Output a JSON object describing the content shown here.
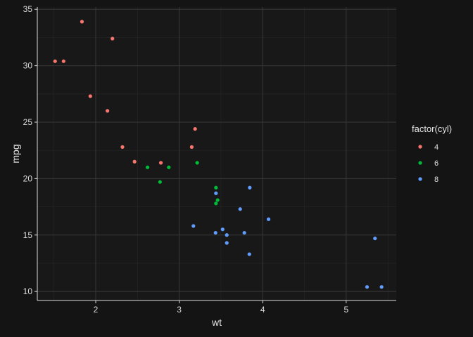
{
  "chart_data": {
    "type": "scatter",
    "title": "",
    "xlabel": "wt",
    "ylabel": "mpg",
    "xlim": [
      1.3,
      5.6
    ],
    "ylim": [
      9.2,
      35.2
    ],
    "xticks": [
      2,
      3,
      4,
      5
    ],
    "yticks": [
      10,
      15,
      20,
      25,
      30,
      35
    ],
    "grid": true,
    "legend": {
      "title": "factor(cyl)",
      "position": "right",
      "entries": [
        "4",
        "6",
        "8"
      ]
    },
    "series": [
      {
        "name": "4",
        "color": "#F8766D",
        "points": [
          {
            "x": 1.835,
            "y": 33.9
          },
          {
            "x": 2.2,
            "y": 32.4
          },
          {
            "x": 1.513,
            "y": 30.4
          },
          {
            "x": 1.615,
            "y": 30.4
          },
          {
            "x": 1.935,
            "y": 27.3
          },
          {
            "x": 2.14,
            "y": 26.0
          },
          {
            "x": 3.19,
            "y": 24.4
          },
          {
            "x": 3.15,
            "y": 22.8
          },
          {
            "x": 2.32,
            "y": 22.8
          },
          {
            "x": 2.465,
            "y": 21.5
          },
          {
            "x": 2.78,
            "y": 21.4
          }
        ]
      },
      {
        "name": "6",
        "color": "#00BA38",
        "points": [
          {
            "x": 2.62,
            "y": 21.0
          },
          {
            "x": 2.875,
            "y": 21.0
          },
          {
            "x": 3.215,
            "y": 21.4
          },
          {
            "x": 3.44,
            "y": 19.2
          },
          {
            "x": 3.46,
            "y": 18.1
          },
          {
            "x": 3.44,
            "y": 17.8
          },
          {
            "x": 2.77,
            "y": 19.7
          }
        ]
      },
      {
        "name": "8",
        "color": "#619CFF",
        "points": [
          {
            "x": 3.845,
            "y": 19.2
          },
          {
            "x": 3.44,
            "y": 18.7
          },
          {
            "x": 3.73,
            "y": 17.3
          },
          {
            "x": 4.07,
            "y": 16.4
          },
          {
            "x": 3.17,
            "y": 15.8
          },
          {
            "x": 3.52,
            "y": 15.5
          },
          {
            "x": 3.435,
            "y": 15.2
          },
          {
            "x": 3.78,
            "y": 15.2
          },
          {
            "x": 3.57,
            "y": 15.0
          },
          {
            "x": 3.57,
            "y": 14.3
          },
          {
            "x": 5.345,
            "y": 14.7
          },
          {
            "x": 3.84,
            "y": 13.3
          },
          {
            "x": 5.25,
            "y": 10.4
          },
          {
            "x": 5.424,
            "y": 10.4
          }
        ]
      }
    ]
  }
}
